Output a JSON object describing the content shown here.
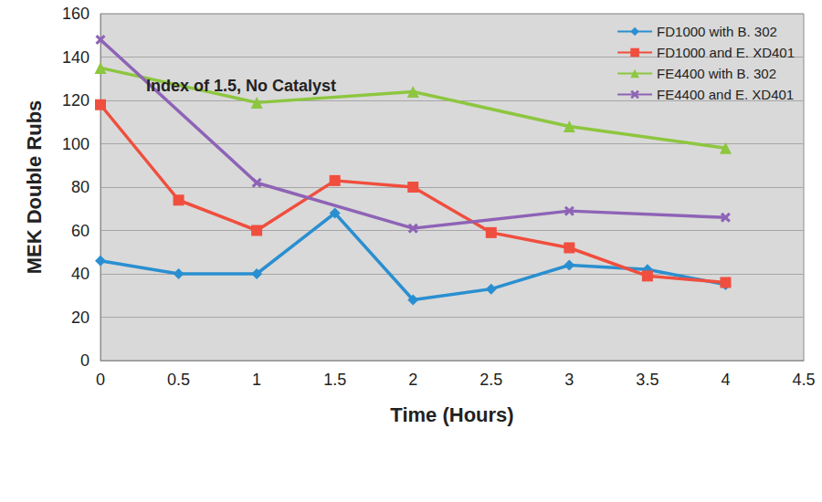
{
  "chart_data": {
    "type": "line",
    "title": "Index of 1.5, No Catalyst",
    "x_label": "Time (Hours)",
    "y_label": "MEK Double Rubs",
    "xlim": [
      0,
      4.5
    ],
    "xticks": [
      0,
      0.5,
      1,
      1.5,
      2,
      2.5,
      3,
      3.5,
      4,
      4.5
    ],
    "ylim": [
      0,
      160
    ],
    "yticks": [
      0,
      20,
      40,
      60,
      80,
      100,
      120,
      140,
      160
    ],
    "grid": true,
    "legend": "upper right",
    "series": [
      {
        "name": "FD1000 with B. 302",
        "color": "#2a8fd0",
        "marker": "diamond",
        "line_style": "solid",
        "x": [
          0,
          0.5,
          1,
          1.5,
          2,
          2.5,
          3,
          3.5,
          4
        ],
        "values": [
          46,
          40,
          40,
          68,
          28,
          33,
          44,
          42,
          35
        ]
      },
      {
        "name": "FD1000 and E. XD401",
        "color": "#f04e3e",
        "marker": "square",
        "line_style": "solid",
        "x": [
          0,
          0.5,
          1,
          1.5,
          2,
          2.5,
          3,
          3.5,
          4
        ],
        "values": [
          118,
          74,
          60,
          83,
          80,
          59,
          52,
          39,
          36
        ]
      },
      {
        "name": "FE4400 with B. 302",
        "color": "#8dc63f",
        "marker": "triangle",
        "line_style": "solid",
        "x": [
          0,
          1,
          2,
          3,
          4
        ],
        "values": [
          135,
          119,
          124,
          108,
          98
        ]
      },
      {
        "name": "FE4400 and E. XD401",
        "color": "#8e63b6",
        "marker": "x",
        "line_style": "solid",
        "x": [
          0,
          1,
          2,
          3,
          4
        ],
        "values": [
          148,
          82,
          61,
          69,
          66
        ]
      }
    ]
  }
}
